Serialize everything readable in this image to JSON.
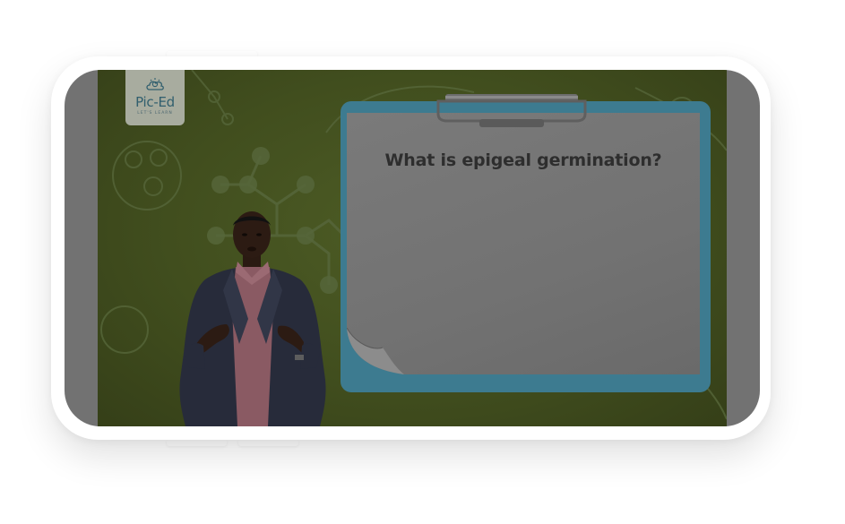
{
  "logo": {
    "name": "Pic-Ed",
    "tagline": "LET'S LEARN"
  },
  "lesson": {
    "question": "What is epigeal germination?"
  },
  "icons": {
    "logo_glyph": "lightbulb-cloud-icon"
  },
  "colors": {
    "video_background": "#414e1e",
    "clipboard": "#3d7b90",
    "paper": "#737373",
    "logo_text": "#315f6e"
  }
}
